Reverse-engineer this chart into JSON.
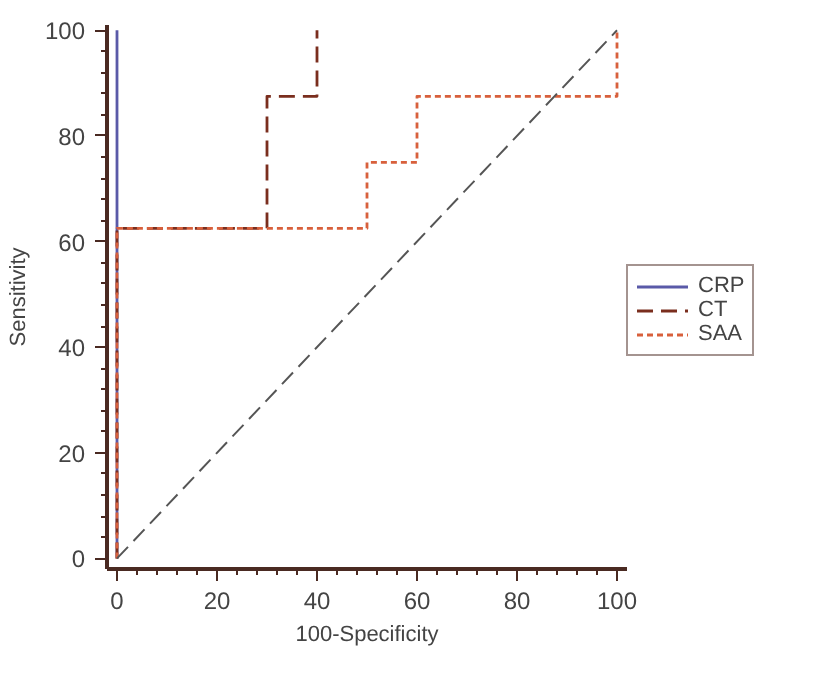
{
  "chart_data": {
    "type": "line",
    "xlabel": "100-Specificity",
    "ylabel": "Sensitivity",
    "series": [
      {
        "name": "CRP",
        "color": "#5a5aa8",
        "line_style": "solid",
        "x": [
          0,
          0,
          0
        ],
        "values": [
          0,
          62.5,
          100
        ]
      },
      {
        "name": "CT",
        "color": "#7a2e1e",
        "line_style": "dashed",
        "x": [
          0,
          0,
          30,
          30,
          40,
          40
        ],
        "values": [
          0,
          62.5,
          62.5,
          87.5,
          87.5,
          100
        ]
      },
      {
        "name": "SAA",
        "color": "#d8603c",
        "line_style": "dotted",
        "x": [
          0,
          0,
          50,
          50,
          60,
          60,
          100,
          100
        ],
        "values": [
          0,
          62.5,
          62.5,
          75,
          75,
          87.5,
          87.5,
          100
        ]
      },
      {
        "color": "#555555",
        "line_style": "dashed",
        "x": [
          0,
          100
        ],
        "values": [
          0,
          100
        ]
      }
    ],
    "xlim": [
      -2,
      102
    ],
    "ylim": [
      -2,
      101
    ],
    "xticks": [
      0,
      20,
      40,
      60,
      80,
      100
    ],
    "yticks": [
      0,
      20,
      40,
      60,
      80,
      100
    ],
    "grid": false,
    "legend": "right",
    "marker": "none"
  }
}
